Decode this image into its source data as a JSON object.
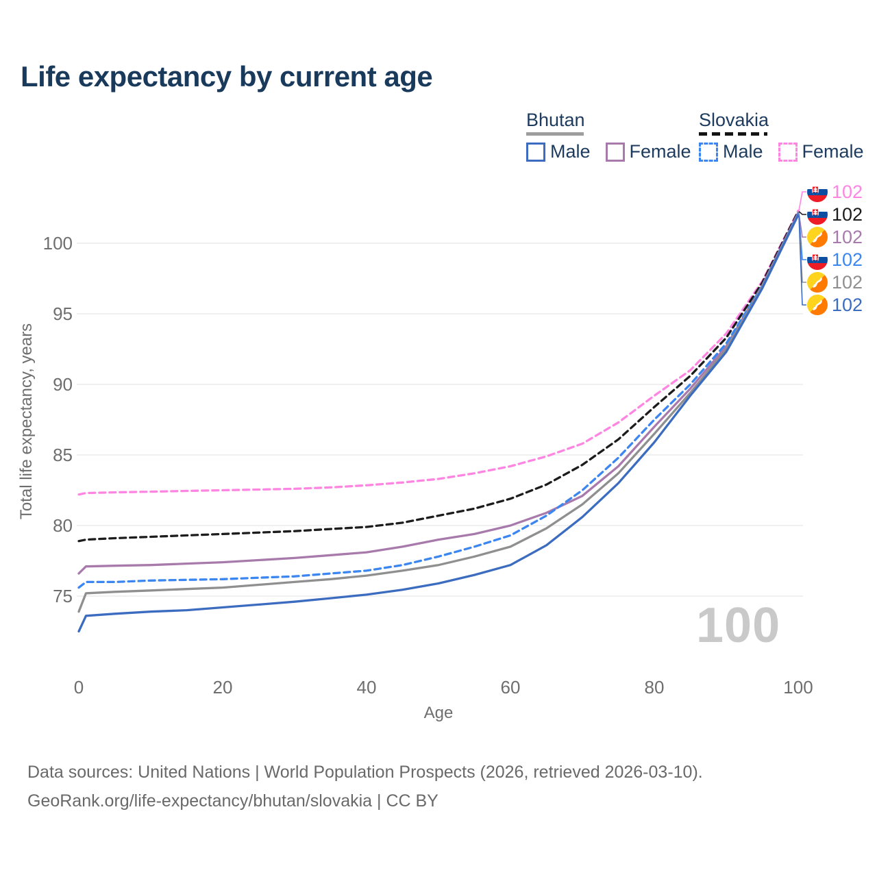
{
  "title": "Life expectancy by current age",
  "watermark": "100",
  "colors": {
    "title_navy": "#1a3a5c",
    "legend_text_navy": "#1d3b5e",
    "axis_text_gray": "#6e6e6e",
    "grid_gray": "#ececeb",
    "watermark_gray": "#c9c9c9",
    "bhutan_underline_gray": "#9e9e9e",
    "slovakia_underline_black": "#141414"
  },
  "legend": {
    "groups": [
      {
        "label": "Bhutan",
        "line_style": "solid",
        "line_color": "#9e9e9e",
        "items": [
          {
            "label": "Male",
            "color": "#3c6cc0",
            "dashed": false
          },
          {
            "label": "Female",
            "color": "#a87aac",
            "dashed": false
          }
        ]
      },
      {
        "label": "Slovakia",
        "line_style": "dashed",
        "line_color": "#141414",
        "items": [
          {
            "label": "Male",
            "color": "#3b86f0",
            "dashed": true
          },
          {
            "label": "Female",
            "color": "#ff85e2",
            "dashed": true
          }
        ]
      }
    ]
  },
  "axes": {
    "x": {
      "label": "Age",
      "ticks": [
        0,
        20,
        40,
        60,
        80,
        100
      ]
    },
    "y": {
      "label": "Total life expectancy, years",
      "ticks": [
        75,
        80,
        85,
        90,
        95,
        100
      ]
    }
  },
  "chart_data": {
    "type": "line",
    "title": "Life expectancy by current age",
    "xlabel": "Age",
    "ylabel": "Total life expectancy, years",
    "xlim": [
      0,
      100
    ],
    "ylim": [
      72,
      103
    ],
    "grid": "horizontal",
    "x_ages": [
      0,
      1,
      5,
      10,
      15,
      20,
      25,
      30,
      35,
      40,
      45,
      50,
      55,
      60,
      65,
      70,
      75,
      80,
      85,
      90,
      95,
      100
    ],
    "series": [
      {
        "id": "slovakia-female",
        "country": "Slovakia",
        "sex": "Female",
        "color": "#ff85e2",
        "dashed": true,
        "flag": "slovakia",
        "end_label": "102",
        "values": [
          82.2,
          82.3,
          82.35,
          82.4,
          82.45,
          82.5,
          82.55,
          82.6,
          82.7,
          82.85,
          83.05,
          83.3,
          83.7,
          84.2,
          84.9,
          85.8,
          87.3,
          89.2,
          91.0,
          93.6,
          97.3,
          102.3
        ]
      },
      {
        "id": "slovakia-both",
        "country": "Slovakia",
        "sex": "Both sexes",
        "color": "#1c1c1c",
        "dashed": true,
        "flag": "slovakia",
        "end_label": "102",
        "values": [
          78.9,
          79.0,
          79.1,
          79.2,
          79.3,
          79.4,
          79.5,
          79.6,
          79.75,
          79.9,
          80.2,
          80.7,
          81.2,
          81.9,
          82.9,
          84.3,
          86.1,
          88.4,
          90.6,
          93.3,
          97.2,
          102.25
        ]
      },
      {
        "id": "bhutan-female",
        "country": "Bhutan",
        "sex": "Female",
        "color": "#a87aac",
        "dashed": false,
        "flag": "bhutan",
        "end_label": "102",
        "values": [
          76.6,
          77.1,
          77.15,
          77.2,
          77.3,
          77.4,
          77.55,
          77.7,
          77.9,
          78.1,
          78.5,
          79.0,
          79.4,
          80.0,
          80.9,
          82.1,
          84.2,
          87.0,
          89.7,
          92.7,
          97.0,
          102.15
        ]
      },
      {
        "id": "slovakia-male",
        "country": "Slovakia",
        "sex": "Male",
        "color": "#3b86f0",
        "dashed": true,
        "flag": "slovakia",
        "end_label": "102",
        "values": [
          75.6,
          76.0,
          76.0,
          76.1,
          76.15,
          76.2,
          76.3,
          76.4,
          76.6,
          76.8,
          77.2,
          77.8,
          78.5,
          79.3,
          80.7,
          82.5,
          84.8,
          87.5,
          90.0,
          92.9,
          96.95,
          102.1
        ]
      },
      {
        "id": "bhutan-both",
        "country": "Bhutan",
        "sex": "Both sexes",
        "color": "#8f8f8f",
        "dashed": false,
        "flag": "bhutan",
        "end_label": "102",
        "values": [
          73.9,
          75.2,
          75.3,
          75.4,
          75.5,
          75.6,
          75.8,
          76.0,
          76.2,
          76.45,
          76.8,
          77.2,
          77.8,
          78.5,
          79.8,
          81.5,
          83.7,
          86.5,
          89.4,
          92.5,
          96.9,
          102.05
        ]
      },
      {
        "id": "bhutan-male",
        "country": "Bhutan",
        "sex": "Male",
        "color": "#3c6cc0",
        "dashed": false,
        "flag": "bhutan",
        "end_label": "102",
        "values": [
          72.5,
          73.6,
          73.75,
          73.9,
          74.0,
          74.2,
          74.4,
          74.6,
          74.85,
          75.1,
          75.45,
          75.9,
          76.5,
          77.2,
          78.6,
          80.6,
          83.0,
          85.9,
          89.2,
          92.3,
          96.8,
          102.0
        ]
      }
    ]
  },
  "footer": {
    "line1": "Data sources: United Nations | World Population Prospects (2026, retrieved 2026-03-10).",
    "line2": "GeoRank.org/life-expectancy/bhutan/slovakia | CC BY"
  }
}
